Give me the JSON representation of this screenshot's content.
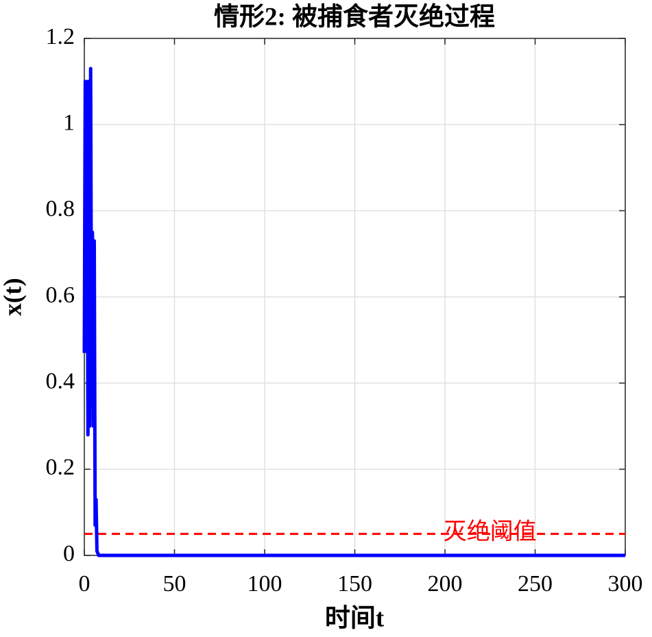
{
  "chart_data": {
    "type": "line",
    "title": "情形2: 被捕食者灭绝过程",
    "xlabel": "时间t",
    "ylabel": "x(t)",
    "series": [
      {
        "color": "#0000ff",
        "x": [
          0,
          0.5,
          1,
          1.5,
          2,
          2.5,
          3,
          3.5,
          4,
          4.5,
          5,
          5.5,
          6,
          6.5,
          7,
          8,
          10,
          300
        ],
        "values": [
          0.47,
          1.1,
          0.5,
          1.1,
          0.28,
          1.1,
          0.3,
          1.13,
          0.45,
          0.75,
          0.3,
          0.73,
          0.07,
          0.13,
          0.01,
          0,
          0,
          0
        ]
      }
    ],
    "threshold": {
      "value": 0.05,
      "label": "灭绝阈值",
      "color": "#ff0000"
    },
    "xlim": [
      0,
      300
    ],
    "xticks": [
      0,
      50,
      100,
      150,
      200,
      250,
      300
    ],
    "ylim": [
      0,
      1.2
    ],
    "yticks": [
      0,
      0.2,
      0.4,
      0.6,
      0.8,
      1,
      1.2
    ],
    "grid": true
  }
}
